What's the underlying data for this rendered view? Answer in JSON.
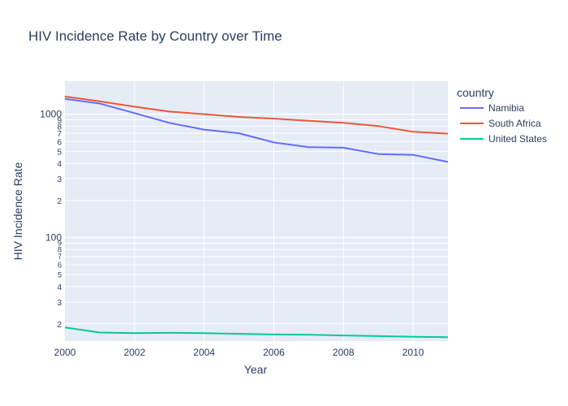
{
  "chart_data": {
    "type": "line",
    "title": "HIV Incidence Rate by Country over Time",
    "xlabel": "Year",
    "ylabel": "HIV Incidence Rate",
    "y_scale": "log",
    "xlim": [
      2000,
      2011
    ],
    "ylim": [
      14.5,
      1850
    ],
    "x": [
      2000,
      2001,
      2002,
      2003,
      2004,
      2005,
      2006,
      2007,
      2008,
      2009,
      2010,
      2011
    ],
    "x_ticks": [
      2000,
      2002,
      2004,
      2006,
      2008,
      2010
    ],
    "y_major_ticks": [
      {
        "value": 100,
        "label": "100"
      },
      {
        "value": 1000,
        "label": "1000"
      }
    ],
    "y_minor_ticks": [
      {
        "value": 20,
        "label": "2"
      },
      {
        "value": 30,
        "label": "3"
      },
      {
        "value": 40,
        "label": "4"
      },
      {
        "value": 50,
        "label": "5"
      },
      {
        "value": 60,
        "label": "6"
      },
      {
        "value": 70,
        "label": "7"
      },
      {
        "value": 80,
        "label": "8"
      },
      {
        "value": 90,
        "label": "9"
      },
      {
        "value": 200,
        "label": "2"
      },
      {
        "value": 300,
        "label": "3"
      },
      {
        "value": 400,
        "label": "4"
      },
      {
        "value": 500,
        "label": "5"
      },
      {
        "value": 600,
        "label": "6"
      },
      {
        "value": 700,
        "label": "7"
      },
      {
        "value": 800,
        "label": "8"
      },
      {
        "value": 900,
        "label": "9"
      }
    ],
    "legend_title": "country",
    "legend_position": "right",
    "grid": true,
    "series": [
      {
        "name": "Namibia",
        "color": "#636efa",
        "values": [
          1330,
          1220,
          1020,
          850,
          750,
          700,
          590,
          540,
          535,
          475,
          468,
          410
        ]
      },
      {
        "name": "South Africa",
        "color": "#ef553b",
        "values": [
          1390,
          1270,
          1150,
          1050,
          1000,
          950,
          920,
          885,
          850,
          800,
          720,
          695
        ]
      },
      {
        "name": "United States",
        "color": "#00cc96",
        "values": [
          18.7,
          17.0,
          16.8,
          16.9,
          16.8,
          16.6,
          16.4,
          16.3,
          16.1,
          15.9,
          15.7,
          15.6
        ]
      }
    ]
  }
}
